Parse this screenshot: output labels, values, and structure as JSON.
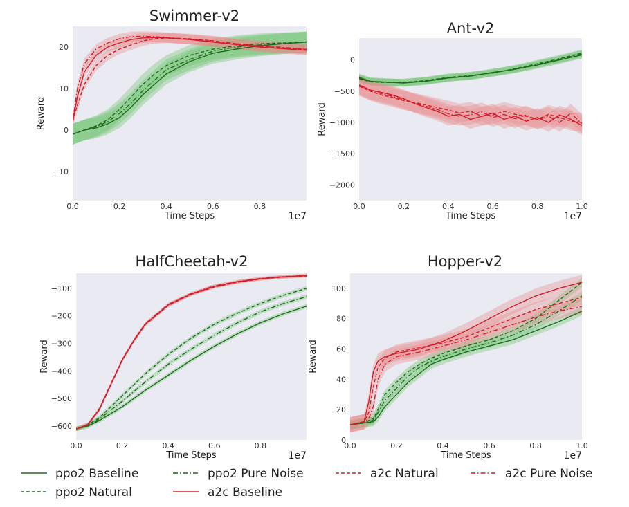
{
  "chart_data": [
    {
      "type": "line",
      "title": "Swimmer-v2",
      "xlabel": "Time Steps",
      "ylabel": "Reward",
      "x_multiplier_label": "1e7",
      "xlim": [
        0,
        1.0
      ],
      "ylim": [
        -17,
        25
      ],
      "xticks": [
        0.0,
        0.2,
        0.4,
        0.6,
        0.8
      ],
      "xtick_labels": [
        "0.0",
        "0.2",
        "0.4",
        "0.6",
        "0.8"
      ],
      "yticks": [
        -10,
        0,
        10,
        20
      ],
      "ytick_labels": [
        "−10",
        "0",
        "10",
        "20"
      ],
      "grid": false,
      "series": [
        {
          "key": "ppo2_baseline",
          "x": [
            0,
            0.05,
            0.1,
            0.15,
            0.2,
            0.25,
            0.3,
            0.35,
            0.4,
            0.5,
            0.6,
            0.7,
            0.8,
            0.9,
            1.0
          ],
          "y": [
            -1,
            0,
            0.5,
            1.5,
            3,
            5.5,
            8.5,
            11,
            13.5,
            16.5,
            18.5,
            19.5,
            20.3,
            20.8,
            21.2
          ],
          "band": 2.5
        },
        {
          "key": "ppo2_natural",
          "x": [
            0,
            0.05,
            0.1,
            0.15,
            0.2,
            0.25,
            0.3,
            0.35,
            0.4,
            0.5,
            0.6,
            0.7,
            0.8,
            0.9,
            1.0
          ],
          "y": [
            -1,
            0,
            1,
            2.5,
            5,
            8,
            11,
            13.5,
            15.5,
            18,
            19.5,
            20.3,
            20.8,
            21,
            21.2
          ],
          "band": 2.5
        },
        {
          "key": "ppo2_pure_noise",
          "x": [
            0,
            0.05,
            0.1,
            0.15,
            0.2,
            0.25,
            0.3,
            0.35,
            0.4,
            0.5,
            0.6,
            0.7,
            0.8,
            0.9,
            1.0
          ],
          "y": [
            -1,
            0,
            0.8,
            2,
            4,
            6.5,
            9.5,
            12,
            14.5,
            17,
            19,
            20,
            20.5,
            20.9,
            21.2
          ],
          "band": 2.5
        },
        {
          "key": "a2c_baseline",
          "x": [
            0,
            0.02,
            0.05,
            0.1,
            0.15,
            0.2,
            0.25,
            0.3,
            0.35,
            0.4,
            0.5,
            0.6,
            0.7,
            0.8,
            0.9,
            1.0
          ],
          "y": [
            2,
            8,
            14,
            18,
            20,
            21,
            21.8,
            22.2,
            22.3,
            22.2,
            21.8,
            21.2,
            20.6,
            20.0,
            19.6,
            19.2
          ],
          "band": 1.2
        },
        {
          "key": "a2c_natural",
          "x": [
            0,
            0.02,
            0.05,
            0.1,
            0.15,
            0.2,
            0.25,
            0.3,
            0.35,
            0.4,
            0.5,
            0.6,
            0.7,
            0.8,
            0.9,
            1.0
          ],
          "y": [
            2,
            6,
            11,
            15.5,
            18,
            19.5,
            20.5,
            21.5,
            22,
            22.2,
            22,
            21.5,
            20.8,
            20.2,
            19.8,
            19.4
          ],
          "band": 1.2
        },
        {
          "key": "a2c_pure_noise",
          "x": [
            0,
            0.02,
            0.05,
            0.1,
            0.15,
            0.2,
            0.25,
            0.3,
            0.35,
            0.4,
            0.5,
            0.6,
            0.7,
            0.8,
            0.9,
            1.0
          ],
          "y": [
            2,
            10,
            16,
            19.5,
            21,
            22,
            22.5,
            22.6,
            22.5,
            22.3,
            21.9,
            21.4,
            20.8,
            20.3,
            19.9,
            19.5
          ],
          "band": 1.2
        }
      ]
    },
    {
      "type": "line",
      "title": "Ant-v2",
      "xlabel": "Time Steps",
      "ylabel": "Reward",
      "x_multiplier_label": "1e7",
      "xlim": [
        0,
        1.0
      ],
      "ylim": [
        -2250,
        350
      ],
      "xticks": [
        0.0,
        0.2,
        0.4,
        0.6,
        0.8,
        1.0
      ],
      "xtick_labels": [
        "0.0",
        "0.2",
        "0.4",
        "0.6",
        "0.8",
        "1.0"
      ],
      "yticks": [
        -2000,
        -1500,
        -1000,
        -500,
        0
      ],
      "ytick_labels": [
        "−2000",
        "−1500",
        "−1000",
        "−500",
        "0"
      ],
      "grid": false,
      "series": [
        {
          "key": "ppo2_baseline",
          "x": [
            0,
            0.05,
            0.1,
            0.2,
            0.3,
            0.4,
            0.5,
            0.6,
            0.7,
            0.8,
            0.9,
            1.0
          ],
          "y": [
            -280,
            -340,
            -350,
            -370,
            -340,
            -290,
            -260,
            -200,
            -150,
            -80,
            0,
            80
          ],
          "band": 60
        },
        {
          "key": "ppo2_natural",
          "x": [
            0,
            0.05,
            0.1,
            0.2,
            0.3,
            0.4,
            0.5,
            0.6,
            0.7,
            0.8,
            0.9,
            1.0
          ],
          "y": [
            -300,
            -350,
            -360,
            -360,
            -330,
            -280,
            -250,
            -210,
            -140,
            -60,
            20,
            110
          ],
          "band": 60
        },
        {
          "key": "ppo2_pure_noise",
          "x": [
            0,
            0.05,
            0.1,
            0.2,
            0.3,
            0.4,
            0.5,
            0.6,
            0.7,
            0.8,
            0.9,
            1.0
          ],
          "y": [
            -290,
            -345,
            -355,
            -365,
            -335,
            -285,
            -255,
            -205,
            -150,
            -70,
            10,
            95
          ],
          "band": 60
        },
        {
          "key": "a2c_baseline",
          "x": [
            0,
            0.05,
            0.1,
            0.15,
            0.2,
            0.25,
            0.3,
            0.35,
            0.4,
            0.45,
            0.5,
            0.55,
            0.6,
            0.65,
            0.7,
            0.75,
            0.8,
            0.85,
            0.9,
            0.95,
            1.0
          ],
          "y": [
            -400,
            -480,
            -520,
            -560,
            -620,
            -700,
            -760,
            -820,
            -900,
            -870,
            -950,
            -900,
            -850,
            -950,
            -900,
            -980,
            -920,
            -1000,
            -880,
            -950,
            -1050
          ],
          "band": 150
        },
        {
          "key": "a2c_natural",
          "x": [
            0,
            0.05,
            0.1,
            0.15,
            0.2,
            0.25,
            0.3,
            0.35,
            0.4,
            0.45,
            0.5,
            0.55,
            0.6,
            0.65,
            0.7,
            0.75,
            0.8,
            0.85,
            0.9,
            0.95,
            1.0
          ],
          "y": [
            -420,
            -500,
            -560,
            -600,
            -650,
            -680,
            -720,
            -760,
            -800,
            -850,
            -820,
            -900,
            -880,
            -820,
            -870,
            -900,
            -950,
            -870,
            -920,
            -980,
            -1000
          ],
          "band": 150
        },
        {
          "key": "a2c_pure_noise",
          "x": [
            0,
            0.05,
            0.1,
            0.15,
            0.2,
            0.25,
            0.3,
            0.35,
            0.4,
            0.45,
            0.5,
            0.55,
            0.6,
            0.65,
            0.7,
            0.75,
            0.8,
            0.85,
            0.9,
            0.95,
            1.0
          ],
          "y": [
            -410,
            -490,
            -540,
            -580,
            -640,
            -690,
            -740,
            -790,
            -860,
            -900,
            -880,
            -830,
            -920,
            -870,
            -940,
            -880,
            -960,
            -900,
            -1000,
            -850,
            -1020
          ],
          "band": 150
        }
      ]
    },
    {
      "type": "line",
      "title": "HalfCheetah-v2",
      "xlabel": "Time Steps",
      "ylabel": "Reward",
      "x_multiplier_label": "1e7",
      "xlim": [
        0,
        1.0
      ],
      "ylim": [
        -650,
        -45
      ],
      "xticks": [
        0.0,
        0.2,
        0.4,
        0.6,
        0.8
      ],
      "xtick_labels": [
        "0.0",
        "0.2",
        "0.4",
        "0.6",
        "0.8"
      ],
      "yticks": [
        -600,
        -500,
        -400,
        -300,
        -200,
        -100
      ],
      "ytick_labels": [
        "−600",
        "−500",
        "−400",
        "−300",
        "−200",
        "−100"
      ],
      "grid": false,
      "series": [
        {
          "key": "ppo2_baseline",
          "x": [
            0,
            0.05,
            0.1,
            0.2,
            0.3,
            0.4,
            0.5,
            0.6,
            0.7,
            0.8,
            0.9,
            1.0
          ],
          "y": [
            -610,
            -600,
            -580,
            -530,
            -470,
            -415,
            -360,
            -310,
            -265,
            -225,
            -192,
            -165
          ],
          "band": 8
        },
        {
          "key": "ppo2_natural",
          "x": [
            0,
            0.05,
            0.1,
            0.2,
            0.3,
            0.4,
            0.5,
            0.6,
            0.7,
            0.8,
            0.9,
            1.0
          ],
          "y": [
            -610,
            -595,
            -570,
            -490,
            -410,
            -340,
            -280,
            -230,
            -190,
            -155,
            -125,
            -100
          ],
          "band": 8
        },
        {
          "key": "ppo2_pure_noise",
          "x": [
            0,
            0.05,
            0.1,
            0.2,
            0.3,
            0.4,
            0.5,
            0.6,
            0.7,
            0.8,
            0.9,
            1.0
          ],
          "y": [
            -610,
            -598,
            -575,
            -510,
            -440,
            -375,
            -320,
            -270,
            -225,
            -185,
            -155,
            -130
          ],
          "band": 8
        },
        {
          "key": "a2c_baseline",
          "x": [
            0,
            0.05,
            0.1,
            0.15,
            0.2,
            0.25,
            0.3,
            0.4,
            0.5,
            0.6,
            0.7,
            0.8,
            0.9,
            1.0
          ],
          "y": [
            -610,
            -595,
            -540,
            -450,
            -360,
            -290,
            -230,
            -160,
            -120,
            -93,
            -76,
            -65,
            -58,
            -54
          ],
          "band": 6
        },
        {
          "key": "a2c_natural",
          "x": [
            0,
            0.05,
            0.1,
            0.15,
            0.2,
            0.25,
            0.3,
            0.4,
            0.5,
            0.6,
            0.7,
            0.8,
            0.9,
            1.0
          ],
          "y": [
            -610,
            -596,
            -542,
            -452,
            -362,
            -292,
            -232,
            -162,
            -122,
            -95,
            -78,
            -66,
            -59,
            -55
          ],
          "band": 6
        },
        {
          "key": "a2c_pure_noise",
          "x": [
            0,
            0.05,
            0.1,
            0.15,
            0.2,
            0.25,
            0.3,
            0.4,
            0.5,
            0.6,
            0.7,
            0.8,
            0.9,
            1.0
          ],
          "y": [
            -610,
            -594,
            -538,
            -448,
            -358,
            -288,
            -228,
            -158,
            -118,
            -91,
            -75,
            -64,
            -57,
            -53
          ],
          "band": 6
        }
      ]
    },
    {
      "type": "line",
      "title": "Hopper-v2",
      "xlabel": "Time Steps",
      "ylabel": "Reward",
      "x_multiplier_label": "1e7",
      "xlim": [
        0,
        1.0
      ],
      "ylim": [
        0,
        110
      ],
      "xticks": [
        0.0,
        0.2,
        0.4,
        0.6,
        0.8,
        1.0
      ],
      "xtick_labels": [
        "0.0",
        "0.2",
        "0.4",
        "0.6",
        "0.8",
        "1.0"
      ],
      "yticks": [
        0,
        20,
        40,
        60,
        80,
        100
      ],
      "ytick_labels": [
        "0",
        "20",
        "40",
        "60",
        "80",
        "100"
      ],
      "grid": false,
      "series": [
        {
          "key": "ppo2_baseline",
          "x": [
            0,
            0.05,
            0.1,
            0.12,
            0.15,
            0.2,
            0.25,
            0.3,
            0.35,
            0.4,
            0.5,
            0.6,
            0.7,
            0.8,
            0.9,
            1.0
          ],
          "y": [
            10,
            11,
            12,
            15,
            22,
            30,
            38,
            44,
            50,
            53,
            58,
            62,
            66,
            72,
            78,
            85
          ],
          "band": 3
        },
        {
          "key": "ppo2_natural",
          "x": [
            0,
            0.05,
            0.1,
            0.12,
            0.15,
            0.2,
            0.25,
            0.3,
            0.35,
            0.4,
            0.5,
            0.6,
            0.7,
            0.8,
            0.9,
            1.0
          ],
          "y": [
            10,
            11,
            14,
            20,
            30,
            38,
            45,
            50,
            54,
            57,
            62,
            66,
            72,
            80,
            92,
            104
          ],
          "band": 3
        },
        {
          "key": "ppo2_pure_noise",
          "x": [
            0,
            0.05,
            0.1,
            0.12,
            0.15,
            0.2,
            0.25,
            0.3,
            0.35,
            0.4,
            0.5,
            0.6,
            0.7,
            0.8,
            0.9,
            1.0
          ],
          "y": [
            10,
            11,
            13,
            18,
            26,
            34,
            42,
            48,
            52,
            55,
            60,
            64,
            69,
            76,
            85,
            95
          ],
          "band": 3
        },
        {
          "key": "a2c_baseline",
          "x": [
            0,
            0.03,
            0.06,
            0.08,
            0.1,
            0.12,
            0.15,
            0.2,
            0.3,
            0.4,
            0.5,
            0.6,
            0.7,
            0.8,
            0.9,
            1.0
          ],
          "y": [
            10,
            11,
            12,
            25,
            45,
            52,
            55,
            57,
            60,
            65,
            72,
            80,
            88,
            95,
            100,
            104
          ],
          "band": 5
        },
        {
          "key": "a2c_natural",
          "x": [
            0,
            0.03,
            0.06,
            0.08,
            0.1,
            0.12,
            0.15,
            0.2,
            0.3,
            0.4,
            0.5,
            0.6,
            0.7,
            0.8,
            0.9,
            1.0
          ],
          "y": [
            10,
            11,
            12,
            18,
            35,
            48,
            54,
            58,
            61,
            64,
            68,
            74,
            80,
            86,
            90,
            94
          ],
          "band": 5
        },
        {
          "key": "a2c_pure_noise",
          "x": [
            0,
            0.03,
            0.06,
            0.08,
            0.1,
            0.12,
            0.15,
            0.2,
            0.3,
            0.4,
            0.5,
            0.6,
            0.7,
            0.8,
            0.9,
            1.0
          ],
          "y": [
            10,
            11,
            12,
            14,
            22,
            40,
            50,
            55,
            58,
            62,
            66,
            71,
            76,
            81,
            85,
            88
          ],
          "band": 5
        }
      ]
    }
  ],
  "legend": {
    "placement": "bottom",
    "items": [
      {
        "key": "ppo2_baseline",
        "label": "ppo2 Baseline",
        "color": "#1e6b1e",
        "dash": "solid"
      },
      {
        "key": "ppo2_natural",
        "label": "ppo2 Natural",
        "color": "#1e6b1e",
        "dash": "dashed"
      },
      {
        "key": "ppo2_pure_noise",
        "label": "ppo2 Pure Noise",
        "color": "#1e6b1e",
        "dash": "dashdot"
      },
      {
        "key": "a2c_baseline",
        "label": "a2c Baseline",
        "color": "#d21e2b",
        "dash": "solid"
      },
      {
        "key": "a2c_natural",
        "label": "a2c Natural",
        "color": "#d21e2b",
        "dash": "dashed"
      },
      {
        "key": "a2c_pure_noise",
        "label": "a2c Pure Noise",
        "color": "#d21e2b",
        "dash": "dashdot"
      }
    ]
  },
  "colors": {
    "axes_background": "#eaeaf2",
    "ppo2_band": "#6ac46a",
    "a2c_band": "#e88a8a"
  }
}
